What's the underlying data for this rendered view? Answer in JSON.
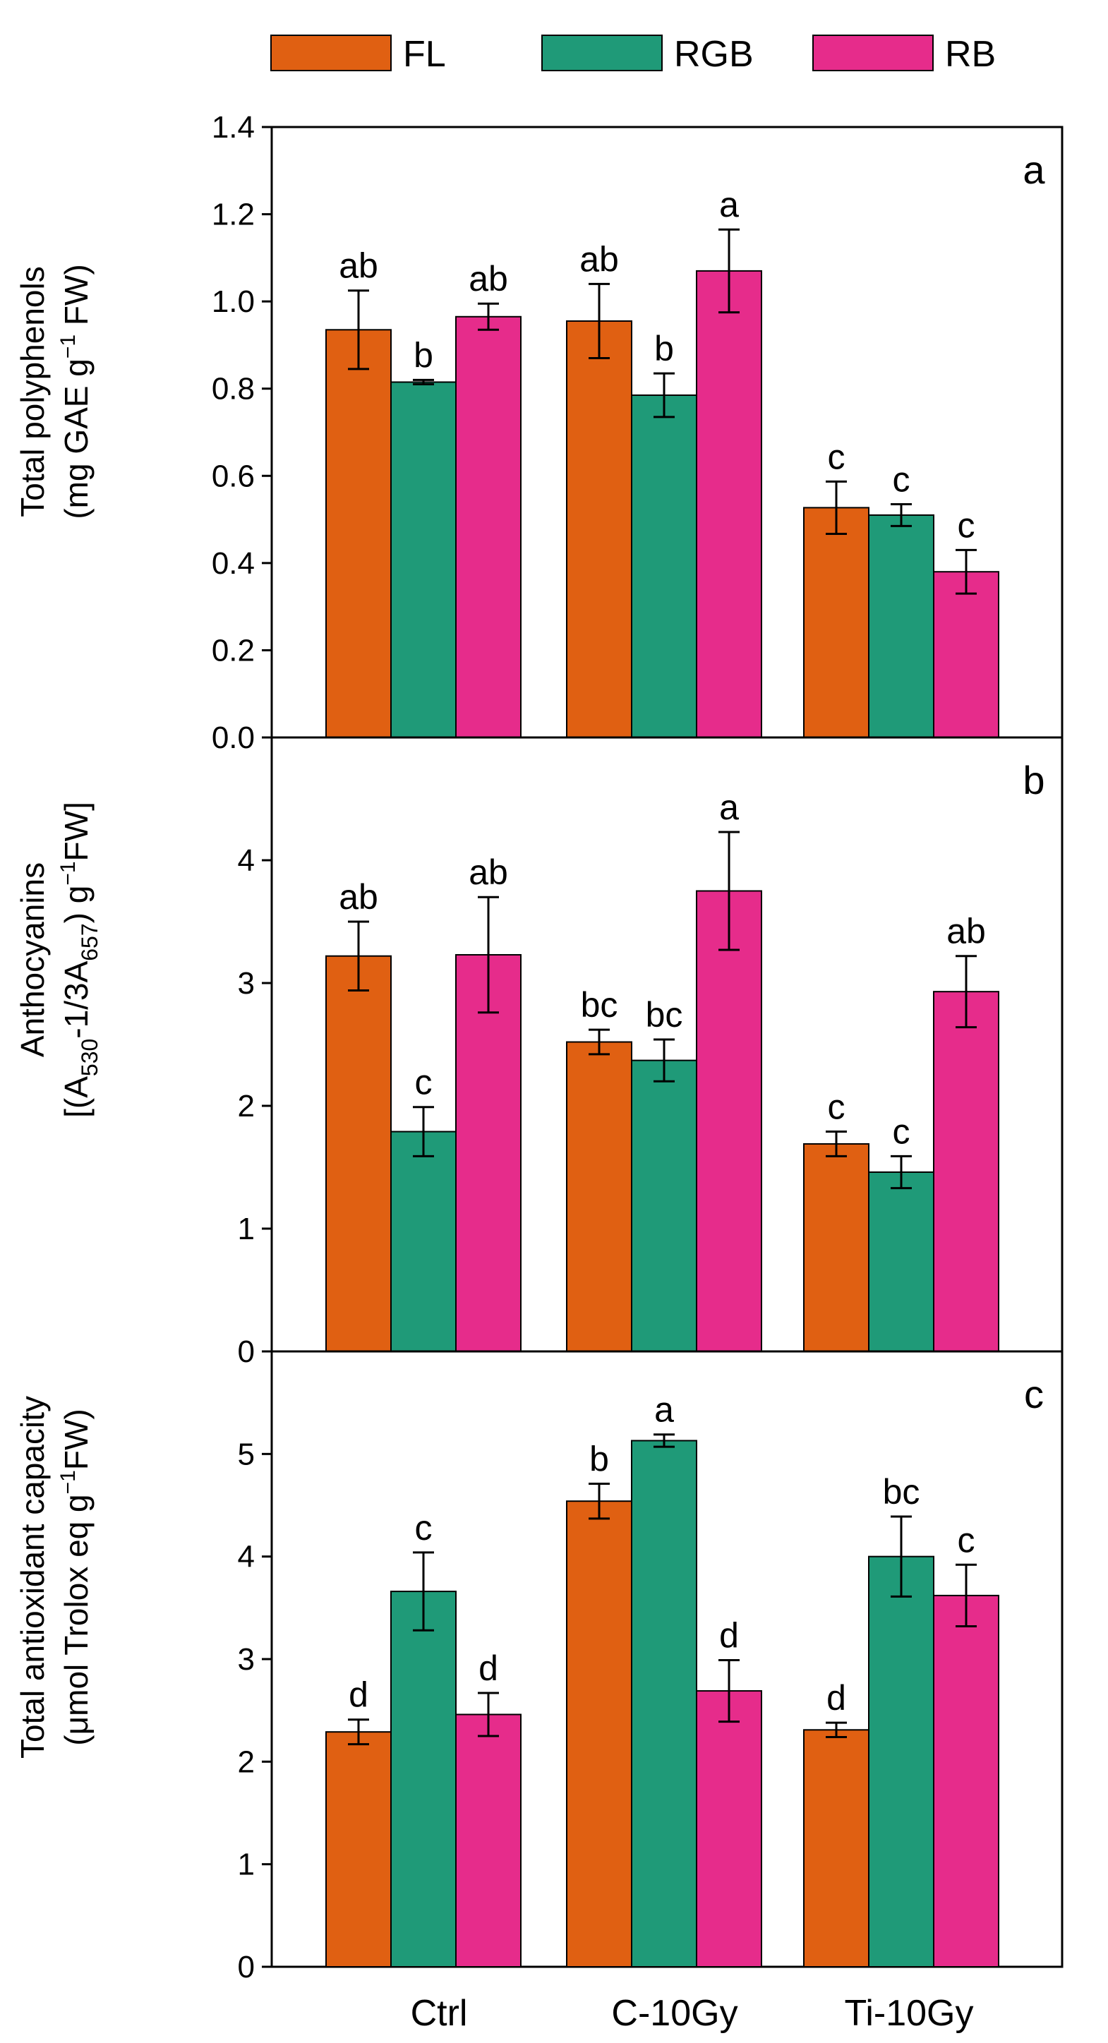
{
  "chart_data": [
    {
      "panel": "a",
      "type": "bar",
      "ylabel_line1": "Total polyphenols",
      "ylabel_line2_a": "(mg GAE g",
      "ylabel_line2_sup": "−1",
      "ylabel_line2_b": " FW)",
      "ylim": [
        0,
        1.4
      ],
      "yticks": [
        "0.0",
        "0.2",
        "0.4",
        "0.6",
        "0.8",
        "1.0",
        "1.2",
        "1.4"
      ],
      "series": [
        {
          "name": "FL",
          "values": [
            0.935,
            0.955,
            0.527
          ],
          "errors": [
            0.09,
            0.085,
            0.06
          ],
          "letters": [
            "ab",
            "ab",
            "c"
          ]
        },
        {
          "name": "RGB",
          "values": [
            0.815,
            0.785,
            0.51
          ],
          "errors": [
            0.005,
            0.05,
            0.025
          ],
          "letters": [
            "b",
            "b",
            "c"
          ]
        },
        {
          "name": "RB",
          "values": [
            0.965,
            1.07,
            0.38
          ],
          "errors": [
            0.03,
            0.095,
            0.05
          ],
          "letters": [
            "ab",
            "a",
            "c"
          ]
        }
      ]
    },
    {
      "panel": "b",
      "type": "bar",
      "ylabel_line1": "Anthocyanins",
      "ylabel_line2_a": "[(A",
      "ylabel_line2_sub1": "530",
      "ylabel_line2_mid": "-1/3A",
      "ylabel_line2_sub2": "657",
      "ylabel_line2_c": ") g",
      "ylabel_line2_sup": "−1",
      "ylabel_line2_d": "FW]",
      "ylim": [
        0,
        5
      ],
      "yticks": [
        "0",
        "1",
        "2",
        "3",
        "4"
      ],
      "series": [
        {
          "name": "FL",
          "values": [
            3.22,
            2.52,
            1.69
          ],
          "errors": [
            0.28,
            0.1,
            0.1
          ],
          "letters": [
            "ab",
            "bc",
            "c"
          ]
        },
        {
          "name": "RGB",
          "values": [
            1.79,
            2.37,
            1.46
          ],
          "errors": [
            0.2,
            0.17,
            0.13
          ],
          "letters": [
            "c",
            "bc",
            "c"
          ]
        },
        {
          "name": "RB",
          "values": [
            3.23,
            3.75,
            2.93
          ],
          "errors": [
            0.47,
            0.48,
            0.29
          ],
          "letters": [
            "ab",
            "a",
            "ab"
          ]
        }
      ]
    },
    {
      "panel": "c",
      "type": "bar",
      "ylabel_line1": "Total antioxidant capacity",
      "ylabel_line2_a": "(μmol Trolox eq g",
      "ylabel_line2_sup": "−1",
      "ylabel_line2_b": "FW)",
      "ylim": [
        0,
        6
      ],
      "yticks": [
        "0",
        "1",
        "2",
        "3",
        "4",
        "5"
      ],
      "series": [
        {
          "name": "FL",
          "values": [
            2.29,
            4.54,
            2.31
          ],
          "errors": [
            0.12,
            0.17,
            0.07
          ],
          "letters": [
            "d",
            "b",
            "d"
          ]
        },
        {
          "name": "RGB",
          "values": [
            3.66,
            5.13,
            4.0
          ],
          "errors": [
            0.38,
            0.06,
            0.39
          ],
          "letters": [
            "c",
            "a",
            "bc"
          ]
        },
        {
          "name": "RB",
          "values": [
            2.46,
            2.69,
            3.62
          ],
          "errors": [
            0.21,
            0.3,
            0.3
          ],
          "letters": [
            "d",
            "d",
            "c"
          ]
        }
      ]
    }
  ],
  "categories": [
    "Ctrl",
    "C-10Gy",
    "Ti-10Gy"
  ],
  "legend": [
    {
      "name": "FL",
      "color": "#e06012"
    },
    {
      "name": "RGB",
      "color": "#1f9a78"
    },
    {
      "name": "RB",
      "color": "#e62c8b"
    }
  ]
}
